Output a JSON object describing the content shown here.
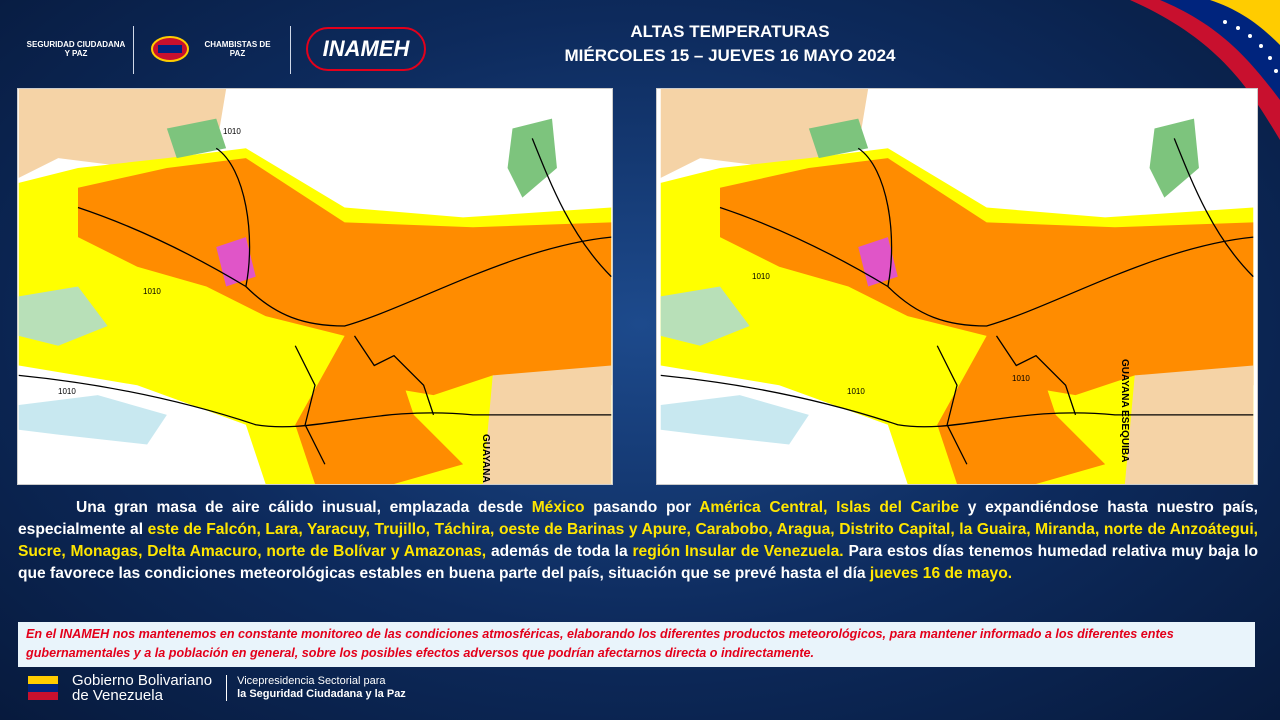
{
  "header": {
    "title_line1": "ALTAS TEMPERATURAS",
    "title_line2": "MIÉRCOLES 15 – JUEVES 16  MAYO 2024",
    "logos": [
      "SEGURIDAD CIUDADANA Y PAZ",
      "CHAMBISTAS DE PAZ",
      "INAMEH"
    ]
  },
  "maps": [
    {
      "region_label": "GUAYANA ESEQUIBA",
      "isobar_labels": [
        "1010",
        "1010",
        "1010"
      ]
    },
    {
      "region_label": "GUAYANA ESEQUIBA",
      "isobar_labels": [
        "1010",
        "1010",
        "1010"
      ]
    }
  ],
  "paragraph": [
    {
      "text": "Una gran masa de aire cálido inusual, emplazada desde ",
      "highlight": false
    },
    {
      "text": "México",
      "highlight": true
    },
    {
      "text": " pasando por ",
      "highlight": false
    },
    {
      "text": "América Central, Islas del Caribe",
      "highlight": true
    },
    {
      "text": " y expandiéndose hasta nuestro país, especialmente al ",
      "highlight": false
    },
    {
      "text": "este de Falcón, Lara, Yaracuy, Trujillo, Táchira, oeste de Barinas y Apure, Carabobo, Aragua, Distrito Capital, la Guaira, Miranda, norte de Anzoátegui, Sucre, Monagas, Delta Amacuro, norte de Bolívar y Amazonas,",
      "highlight": true
    },
    {
      "text": " además de toda la ",
      "highlight": false
    },
    {
      "text": "región Insular de Venezuela.",
      "highlight": true
    },
    {
      "text": " Para estos días tenemos humedad relativa muy baja lo que favorece las condiciones meteorológicas estables en buena parte del país, situación que se prevé hasta el día ",
      "highlight": false
    },
    {
      "text": "jueves 16 de mayo.",
      "highlight": true
    }
  ],
  "notice": "En el INAMEH nos mantenemos en constante monitoreo de las condiciones atmosféricas, elaborando los diferentes productos meteorológicos, para mantener informado a los diferentes entes gubernamentales y a la población en general, sobre los posibles efectos adversos que podrían afectarnos directa o indirectamente.",
  "footer": {
    "gov_line1": "Gobierno Bolivariano",
    "gov_line2": "de Venezuela",
    "vice_line1": "Vicepresidencia Sectorial para",
    "vice_line2": "la Seguridad Ciudadana y la Paz"
  }
}
